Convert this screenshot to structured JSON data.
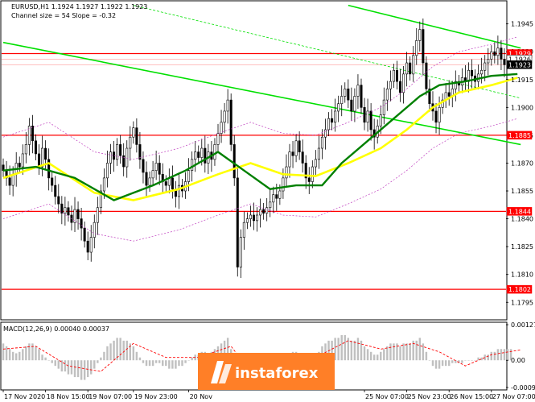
{
  "header": {
    "symbol_line": "EURUSD,H1  1.1924 1.1927 1.1922 1.1923",
    "indicator_line": "Channel size = 54  Slope = -0.32",
    "macd_label": "MACD(12,26,9) 0.00040 0.00037"
  },
  "watermark": {
    "text": "instaforex"
  },
  "colors": {
    "bull": "#ffffff",
    "bear": "#000000",
    "level": "#ff0000",
    "trend": "#00e000",
    "ma_fast": "#008000",
    "ma_slow": "#ffff00",
    "bands": "#c040c0",
    "macd_hist": "#c0c0c0",
    "macd_signal": "#ff0000",
    "watermark_bg": "#ff7f27"
  },
  "chart_data": {
    "type": "candlestick",
    "price_axis": {
      "ylim": [
        1.1786,
        1.1957
      ],
      "ticks": [
        "1.1945",
        "1.1930",
        "1.1915",
        "1.1900",
        "1.1885",
        "1.1870",
        "1.1855",
        "1.1840",
        "1.1825",
        "1.1810",
        "1.1795"
      ]
    },
    "time_axis": {
      "labels": [
        "17 Nov 2020",
        "18 Nov 15:00",
        "19 Nov 07:00",
        "19 Nov 23:00",
        "20 Nov",
        "25 Nov 07:00",
        "25 Nov 23:00",
        "26 Nov 15:00",
        "27 Nov 07:00"
      ],
      "label_index": [
        0,
        13,
        26,
        40,
        57,
        111,
        124,
        137,
        150
      ]
    },
    "levels": [
      {
        "price": 1.1929,
        "label": "1.1929"
      },
      {
        "price": 1.1885,
        "label": "1.1885"
      },
      {
        "price": 1.1844,
        "label": "1.1844"
      },
      {
        "price": 1.1802,
        "label": "1.1802"
      }
    ],
    "price_tags": [
      {
        "price": 1.1929,
        "label": "1.1929",
        "bg": "#ff0000",
        "fg": "#ffffff"
      },
      {
        "price": 1.1926,
        "label": "1.1926",
        "bg": "#ffffff",
        "fg": "#000000"
      },
      {
        "price": 1.1923,
        "label": "1.1923",
        "bg": "#000000",
        "fg": "#ffffff"
      },
      {
        "price": 1.1885,
        "label": "1.1885",
        "bg": "#ff0000",
        "fg": "#ffffff"
      },
      {
        "price": 1.1844,
        "label": "1.1844",
        "bg": "#ff0000",
        "fg": "#ffffff"
      },
      {
        "price": 1.1802,
        "label": "1.1802",
        "bg": "#ff0000",
        "fg": "#ffffff"
      }
    ],
    "trend_lines": [
      {
        "from": [
          0,
          1.1935
        ],
        "to": [
          159,
          1.188
        ],
        "style": "solid"
      },
      {
        "from": [
          106,
          1.1955
        ],
        "to": [
          159,
          1.1932
        ],
        "style": "solid"
      },
      {
        "from": [
          40,
          1.1955
        ],
        "to": [
          159,
          1.1905
        ],
        "style": "dashed"
      }
    ],
    "closes": [
      1.1866,
      1.1862,
      1.1858,
      1.1864,
      1.187,
      1.1868,
      1.1875,
      1.188,
      1.189,
      1.1882,
      1.1875,
      1.1868,
      1.1878,
      1.1872,
      1.1862,
      1.1858,
      1.1852,
      1.1848,
      1.1843,
      1.1846,
      1.1842,
      1.1838,
      1.1845,
      1.184,
      1.1835,
      1.1828,
      1.1822,
      1.183,
      1.1838,
      1.1846,
      1.1855,
      1.1862,
      1.187,
      1.1876,
      1.1872,
      1.188,
      1.1874,
      1.1868,
      1.1878,
      1.1884,
      1.1889,
      1.188,
      1.1872,
      1.1865,
      1.1858,
      1.1862,
      1.1866,
      1.187,
      1.1864,
      1.186,
      1.1858,
      1.1862,
      1.1856,
      1.1852,
      1.1858,
      1.1855,
      1.186,
      1.1866,
      1.1872,
      1.1876,
      1.1873,
      1.1878,
      1.187,
      1.1876,
      1.1872,
      1.188,
      1.1886,
      1.1892,
      1.1898,
      1.1904,
      1.188,
      1.1862,
      1.1814,
      1.183,
      1.1838,
      1.184,
      1.1842,
      1.1839,
      1.1842,
      1.1845,
      1.1843,
      1.1846,
      1.1849,
      1.1853,
      1.1851,
      1.1855,
      1.1862,
      1.1868,
      1.1876,
      1.1874,
      1.1882,
      1.1876,
      1.187,
      1.1862,
      1.186,
      1.1868,
      1.1872,
      1.1878,
      1.1884,
      1.1888,
      1.1894,
      1.1892,
      1.1898,
      1.1902,
      1.1906,
      1.191,
      1.1904,
      1.1898,
      1.1906,
      1.1912,
      1.19,
      1.1892,
      1.1898,
      1.1888,
      1.1884,
      1.189,
      1.1896,
      1.1904,
      1.191,
      1.1914,
      1.192,
      1.1914,
      1.1908,
      1.1918,
      1.1924,
      1.1918,
      1.1928,
      1.1936,
      1.1942,
      1.1924,
      1.191,
      1.1902,
      1.1898,
      1.1892,
      1.19,
      1.1904,
      1.1908,
      1.1906,
      1.191,
      1.1914,
      1.1912,
      1.1916,
      1.1914,
      1.192,
      1.1917,
      1.1914,
      1.1918,
      1.192,
      1.1924,
      1.1926,
      1.193,
      1.1928,
      1.1932,
      1.1926,
      1.1923
    ],
    "ma_fast": [
      [
        0,
        1.1866
      ],
      [
        10,
        1.1868
      ],
      [
        22,
        1.1862
      ],
      [
        34,
        1.185
      ],
      [
        46,
        1.1858
      ],
      [
        56,
        1.1866
      ],
      [
        66,
        1.1876
      ],
      [
        74,
        1.1866
      ],
      [
        82,
        1.1856
      ],
      [
        90,
        1.1858
      ],
      [
        98,
        1.1858
      ],
      [
        104,
        1.187
      ],
      [
        112,
        1.1882
      ],
      [
        120,
        1.1894
      ],
      [
        128,
        1.1906
      ],
      [
        134,
        1.1912
      ],
      [
        142,
        1.1914
      ],
      [
        150,
        1.1917
      ],
      [
        158,
        1.1918
      ]
    ],
    "ma_slow": [
      [
        0,
        1.1862
      ],
      [
        14,
        1.187
      ],
      [
        28,
        1.1854
      ],
      [
        40,
        1.185
      ],
      [
        54,
        1.1856
      ],
      [
        66,
        1.1864
      ],
      [
        76,
        1.187
      ],
      [
        86,
        1.1864
      ],
      [
        96,
        1.1863
      ],
      [
        106,
        1.187
      ],
      [
        116,
        1.1878
      ],
      [
        124,
        1.1888
      ],
      [
        132,
        1.19
      ],
      [
        140,
        1.1908
      ],
      [
        150,
        1.1912
      ],
      [
        158,
        1.1916
      ]
    ],
    "macd": {
      "ylim": [
        -0.001,
        0.0013
      ],
      "ticks": [
        "0.00127",
        "0.00",
        "-0.00097"
      ],
      "tick_values": [
        0.00127,
        0.0,
        -0.00097
      ],
      "histogram": [
        0.0006,
        0.0005,
        0.0004,
        0.0003,
        0.00025,
        0.0003,
        0.0004,
        0.0005,
        0.0006,
        0.0006,
        0.0005,
        0.0004,
        0.0002,
        0.0001,
        0.0,
        -0.0001,
        -0.0002,
        -0.0003,
        -0.0004,
        -0.0004,
        -0.0005,
        -0.0005,
        -0.0006,
        -0.0006,
        -0.0007,
        -0.0007,
        -0.0006,
        -0.0005,
        -0.0003,
        -0.0001,
        0.0001,
        0.0003,
        0.0005,
        0.0006,
        0.0007,
        0.0008,
        0.0008,
        0.0007,
        0.0007,
        0.0006,
        0.0005,
        0.0003,
        0.0001,
        -0.0001,
        -0.0002,
        -0.0002,
        -0.0002,
        -0.0001,
        -0.0001,
        -0.0002,
        -0.0002,
        -0.0003,
        -0.0003,
        -0.0003,
        -0.0002,
        -0.0002,
        -0.0001,
        0.0,
        0.0001,
        0.0002,
        0.0002,
        0.0003,
        0.0003,
        0.0002,
        0.0003,
        0.0004,
        0.0005,
        0.0006,
        0.0007,
        0.0008,
        0.0004,
        0.0,
        -0.0006,
        -0.0008,
        -0.0008,
        -0.0007,
        -0.0006,
        -0.0006,
        -0.0005,
        -0.0005,
        -0.0004,
        -0.0004,
        -0.0003,
        -0.0002,
        -0.0002,
        -0.0001,
        0.0,
        0.0001,
        0.0002,
        0.0003,
        0.0003,
        0.0002,
        0.0001,
        0.0,
        -0.0001,
        0.0,
        0.0002,
        0.0003,
        0.0005,
        0.0006,
        0.0007,
        0.0007,
        0.0008,
        0.0008,
        0.0009,
        0.0009,
        0.0008,
        0.0007,
        0.0007,
        0.0008,
        0.0007,
        0.0005,
        0.0004,
        0.0003,
        0.0002,
        0.0002,
        0.0003,
        0.0004,
        0.0005,
        0.0006,
        0.0006,
        0.0006,
        0.0005,
        0.0006,
        0.0006,
        0.0006,
        0.0007,
        0.0007,
        0.0008,
        0.0006,
        0.0003,
        0.0,
        -0.0002,
        -0.0003,
        -0.0003,
        -0.0002,
        -0.0002,
        -0.0002,
        -0.0001,
        -0.0001,
        -0.0001,
        -0.0001,
        0.0,
        0.0,
        0.0,
        0.0,
        0.0001,
        0.0001,
        0.0002,
        0.0002,
        0.0003,
        0.0003,
        0.0004,
        0.0004,
        0.0004,
        0.0004,
        0.0004
      ],
      "signal": [
        [
          0,
          0.0004
        ],
        [
          10,
          0.0005
        ],
        [
          20,
          -0.0002
        ],
        [
          30,
          -0.0004
        ],
        [
          40,
          0.0006
        ],
        [
          50,
          0.0001
        ],
        [
          60,
          0.0001
        ],
        [
          70,
          0.0005
        ],
        [
          76,
          -0.0004
        ],
        [
          86,
          -0.0003
        ],
        [
          96,
          0.0001
        ],
        [
          106,
          0.0007
        ],
        [
          116,
          0.0004
        ],
        [
          126,
          0.0006
        ],
        [
          134,
          0.0003
        ],
        [
          142,
          -0.0002
        ],
        [
          150,
          0.0002
        ],
        [
          159,
          0.00037
        ]
      ]
    }
  }
}
